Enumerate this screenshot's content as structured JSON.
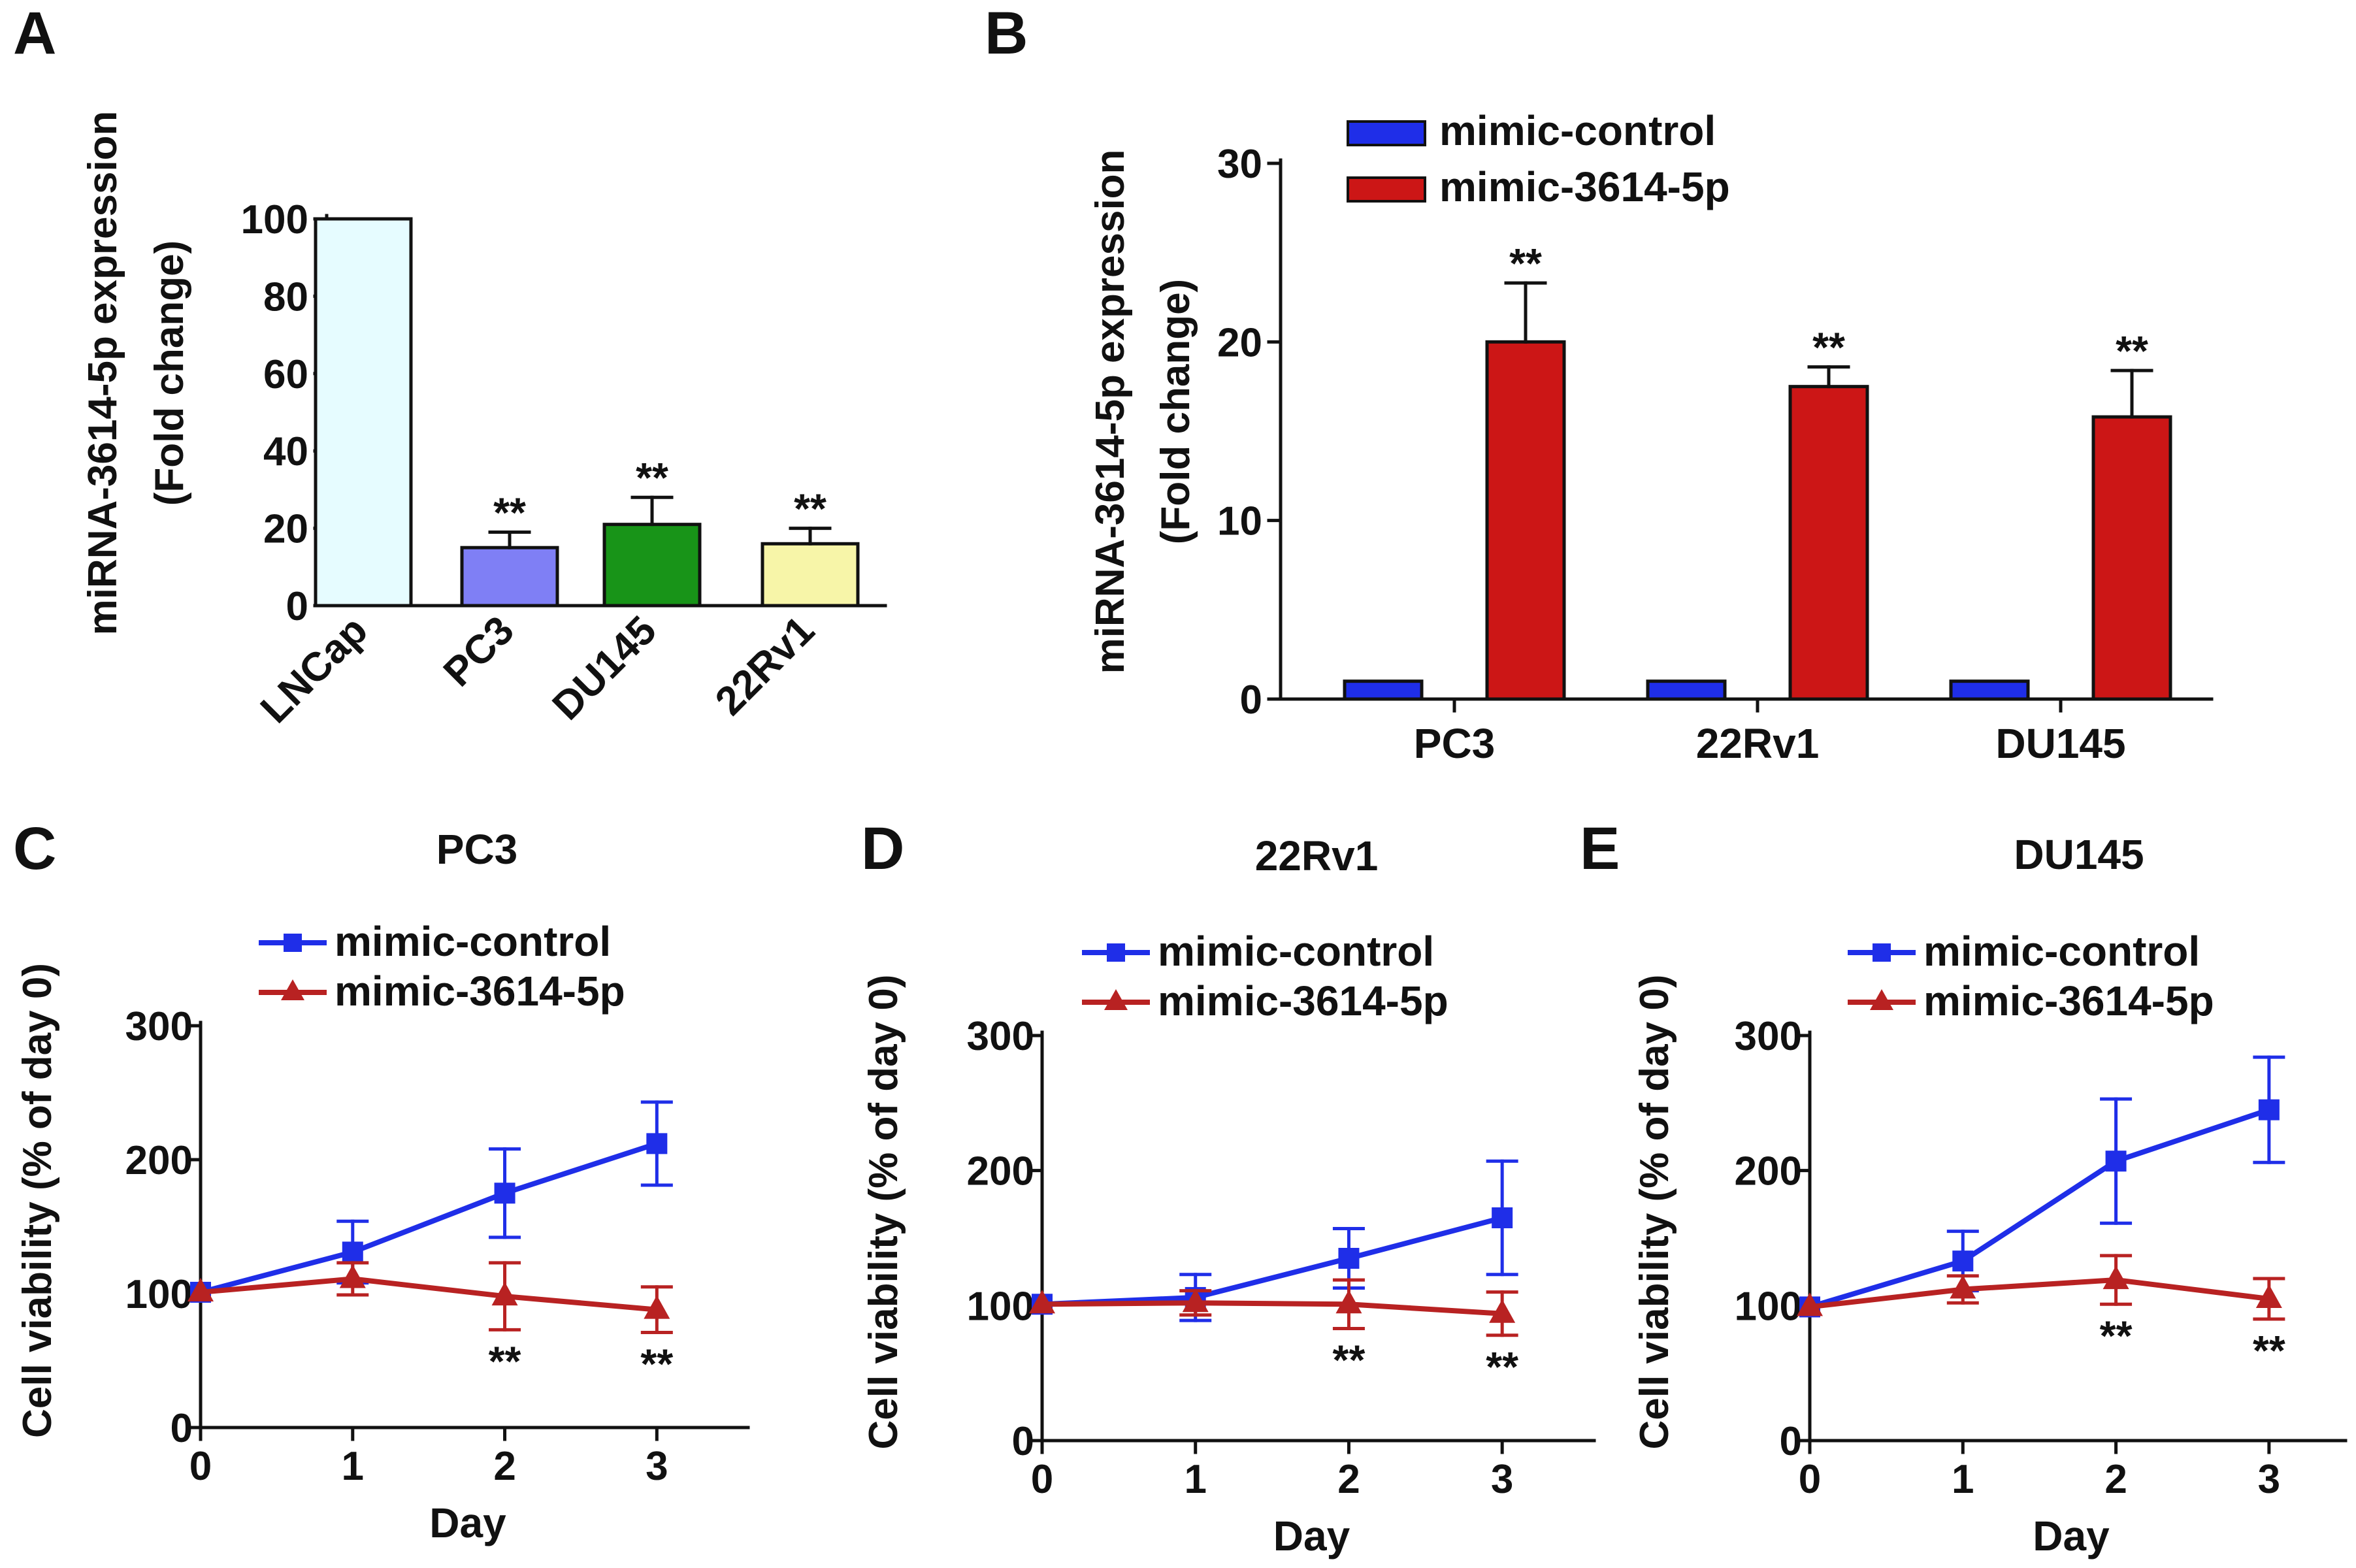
{
  "chart_data": [
    {
      "panel": "A",
      "type": "bar",
      "title": "",
      "xlabel": "",
      "ylabel": "miRNA-3614-5p expression",
      "ylabel2": "(Fold change)",
      "categories": [
        "LNCap",
        "PC3",
        "DU145",
        "22Rv1"
      ],
      "values": [
        100,
        15,
        21,
        16
      ],
      "errors": [
        0,
        4,
        7,
        4
      ],
      "bar_colors": [
        "#e6fcff",
        "#7f7ff5",
        "#189418",
        "#f7f5a8"
      ],
      "annotations": [
        "",
        "**",
        "**",
        "**"
      ],
      "yticks": [
        0,
        20,
        40,
        60,
        80,
        100
      ],
      "ylim": [
        0,
        100
      ]
    },
    {
      "panel": "B",
      "type": "bar",
      "title": "",
      "xlabel": "",
      "ylabel": "miRNA-3614-5p expression",
      "ylabel2": "(Fold change)",
      "categories": [
        "PC3",
        "22Rv1",
        "DU145"
      ],
      "series": [
        {
          "name": "mimic-control",
          "color": "#1f2ee8",
          "values": [
            1,
            1,
            1
          ],
          "errors": [
            0,
            0,
            0
          ]
        },
        {
          "name": "mimic-3614-5p",
          "color": "#cc1616",
          "values": [
            20,
            17.5,
            15.8
          ],
          "errors": [
            3.3,
            1.1,
            2.6
          ]
        }
      ],
      "annotations": [
        "**",
        "**",
        "**"
      ],
      "yticks": [
        0,
        10,
        20,
        30
      ],
      "ylim": [
        0,
        30
      ]
    },
    {
      "panel": "C",
      "type": "line",
      "title": "PC3",
      "xlabel": "Day",
      "ylabel": "Cell viability (% of day 0)",
      "x": [
        0,
        1,
        2,
        3
      ],
      "series": [
        {
          "name": "mimic-control",
          "color": "#1f2ee8",
          "marker": "square",
          "values": [
            101,
            131,
            175,
            212
          ],
          "errors": [
            0,
            23,
            33,
            31
          ]
        },
        {
          "name": "mimic-3614-5p",
          "color": "#b82222",
          "marker": "triangle",
          "values": [
            101,
            111,
            98,
            88
          ],
          "errors": [
            0,
            12,
            25,
            17
          ]
        }
      ],
      "annotations": [
        {
          "x": 2,
          "text": "**"
        },
        {
          "x": 3,
          "text": "**"
        }
      ],
      "yticks": [
        0,
        100,
        200,
        300
      ],
      "xticks": [
        0,
        1,
        2,
        3
      ],
      "ylim": [
        0,
        300
      ],
      "xlim": [
        0,
        3.6
      ]
    },
    {
      "panel": "D",
      "type": "line",
      "title": "22Rv1",
      "xlabel": "Day",
      "ylabel": "Cell viability (% of day 0)",
      "x": [
        0,
        1,
        2,
        3
      ],
      "series": [
        {
          "name": "mimic-control",
          "color": "#1f2ee8",
          "marker": "square",
          "values": [
            101,
            106,
            135,
            165
          ],
          "errors": [
            0,
            17,
            22,
            42
          ]
        },
        {
          "name": "mimic-3614-5p",
          "color": "#b82222",
          "marker": "triangle",
          "values": [
            101,
            102,
            101,
            94
          ],
          "errors": [
            0,
            9,
            18,
            16
          ]
        }
      ],
      "annotations": [
        {
          "x": 2,
          "text": "**"
        },
        {
          "x": 3,
          "text": "**"
        }
      ],
      "yticks": [
        0,
        100,
        200,
        300
      ],
      "xticks": [
        0,
        1,
        2,
        3
      ],
      "ylim": [
        0,
        300
      ],
      "xlim": [
        0,
        3.6
      ]
    },
    {
      "panel": "E",
      "type": "line",
      "title": "DU145",
      "xlabel": "Day",
      "ylabel": "Cell viability (% of day 0)",
      "x": [
        0,
        1,
        2,
        3
      ],
      "series": [
        {
          "name": "mimic-control",
          "color": "#1f2ee8",
          "marker": "square",
          "values": [
            99,
            133,
            207,
            245
          ],
          "errors": [
            0,
            22,
            46,
            39
          ]
        },
        {
          "name": "mimic-3614-5p",
          "color": "#b82222",
          "marker": "triangle",
          "values": [
            99,
            112,
            119,
            105
          ],
          "errors": [
            0,
            10,
            18,
            15
          ]
        }
      ],
      "annotations": [
        {
          "x": 2,
          "text": "**"
        },
        {
          "x": 3,
          "text": "**"
        }
      ],
      "yticks": [
        0,
        100,
        200,
        300
      ],
      "xticks": [
        0,
        1,
        2,
        3
      ],
      "ylim": [
        0,
        300
      ],
      "xlim": [
        0,
        3.5
      ]
    }
  ]
}
